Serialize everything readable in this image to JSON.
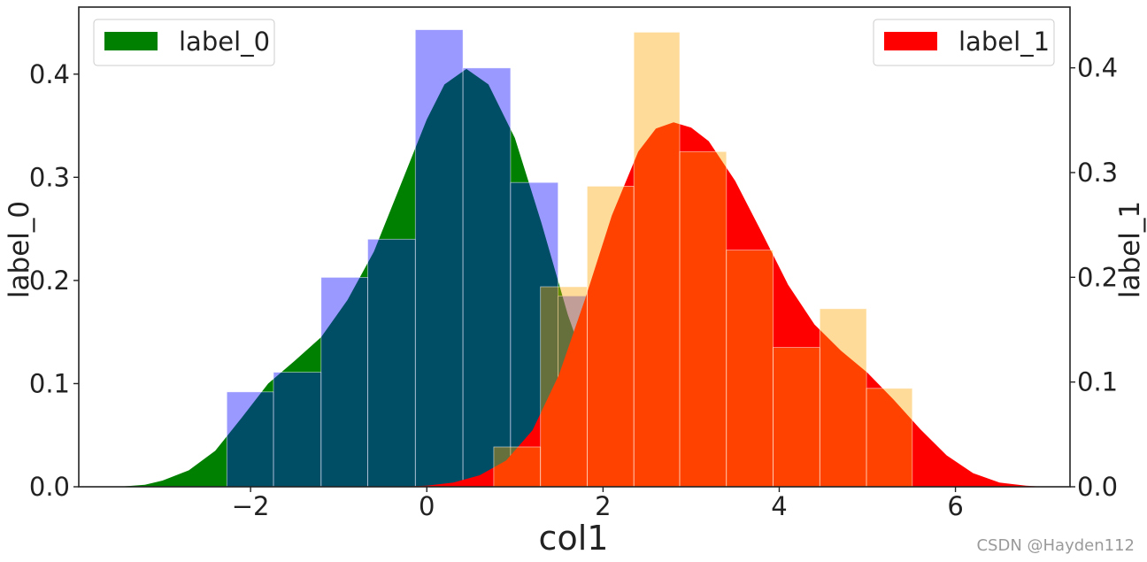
{
  "watermark": "CSDN @Hayden112",
  "chart_data": {
    "type": "histogram",
    "xlabel": "col1",
    "ylabel_left": "label_0",
    "ylabel_right": "label_1",
    "xlim": [
      -3.95,
      7.3
    ],
    "ylim_left": [
      0,
      0.465
    ],
    "ylim_right": [
      0,
      0.458
    ],
    "x_ticks": [
      -2,
      0,
      2,
      4,
      6
    ],
    "x_tick_labels": [
      "−2",
      "0",
      "2",
      "4",
      "6"
    ],
    "y_left_ticks": [
      0.0,
      0.1,
      0.2,
      0.3,
      0.4
    ],
    "y_left_tick_labels": [
      "0.0",
      "0.1",
      "0.2",
      "0.3",
      "0.4"
    ],
    "y_right_ticks": [
      0.0,
      0.1,
      0.2,
      0.3,
      0.4
    ],
    "y_right_tick_labels": [
      "0.0",
      "0.1",
      "0.2",
      "0.3",
      "0.4"
    ],
    "legend_left": {
      "label": "label_0",
      "color": "#008000",
      "position": "top-left"
    },
    "legend_right": {
      "label": "label_1",
      "color": "#ff0000",
      "position": "top-right"
    },
    "series": [
      {
        "name": "label_0",
        "axis": "left",
        "hist_color": "#0000ff",
        "hist_opacity": 0.4,
        "kde_color": "#008000",
        "bins": [
          {
            "x0": -2.27,
            "x1": -1.74,
            "density": 0.092
          },
          {
            "x0": -1.74,
            "x1": -1.2,
            "density": 0.111
          },
          {
            "x0": -1.2,
            "x1": -0.67,
            "density": 0.203
          },
          {
            "x0": -0.67,
            "x1": -0.13,
            "density": 0.24
          },
          {
            "x0": -0.13,
            "x1": 0.41,
            "density": 0.443
          },
          {
            "x0": 0.41,
            "x1": 0.95,
            "density": 0.406
          },
          {
            "x0": 0.95,
            "x1": 1.49,
            "density": 0.295
          },
          {
            "x0": 1.49,
            "x1": 2.03,
            "density": 0.185
          }
        ],
        "kde": [
          {
            "x": -3.5,
            "y": 0.0
          },
          {
            "x": -3.2,
            "y": 0.002
          },
          {
            "x": -3.0,
            "y": 0.006
          },
          {
            "x": -2.7,
            "y": 0.016
          },
          {
            "x": -2.4,
            "y": 0.035
          },
          {
            "x": -2.1,
            "y": 0.067
          },
          {
            "x": -1.8,
            "y": 0.1
          },
          {
            "x": -1.5,
            "y": 0.122
          },
          {
            "x": -1.2,
            "y": 0.145
          },
          {
            "x": -0.9,
            "y": 0.181
          },
          {
            "x": -0.6,
            "y": 0.228
          },
          {
            "x": -0.3,
            "y": 0.292
          },
          {
            "x": 0.0,
            "y": 0.356
          },
          {
            "x": 0.2,
            "y": 0.39
          },
          {
            "x": 0.45,
            "y": 0.405
          },
          {
            "x": 0.7,
            "y": 0.39
          },
          {
            "x": 1.0,
            "y": 0.338
          },
          {
            "x": 1.3,
            "y": 0.256
          },
          {
            "x": 1.6,
            "y": 0.167
          },
          {
            "x": 1.9,
            "y": 0.094
          },
          {
            "x": 2.2,
            "y": 0.046
          },
          {
            "x": 2.5,
            "y": 0.02
          },
          {
            "x": 2.8,
            "y": 0.008
          },
          {
            "x": 3.1,
            "y": 0.003
          },
          {
            "x": 3.5,
            "y": 0.0
          }
        ]
      },
      {
        "name": "label_1",
        "axis": "right",
        "hist_color": "#ffa500",
        "hist_opacity": 0.4,
        "kde_color": "#ff0000",
        "bins": [
          {
            "x0": 0.76,
            "x1": 1.29,
            "density": 0.038
          },
          {
            "x0": 1.29,
            "x1": 1.82,
            "density": 0.191
          },
          {
            "x0": 1.82,
            "x1": 2.35,
            "density": 0.287
          },
          {
            "x0": 2.35,
            "x1": 2.87,
            "density": 0.434
          },
          {
            "x0": 2.87,
            "x1": 3.4,
            "density": 0.32
          },
          {
            "x0": 3.4,
            "x1": 3.93,
            "density": 0.226
          },
          {
            "x0": 3.93,
            "x1": 4.46,
            "density": 0.133
          },
          {
            "x0": 4.46,
            "x1": 4.99,
            "density": 0.17
          },
          {
            "x0": 4.99,
            "x1": 5.51,
            "density": 0.094
          }
        ],
        "kde": [
          {
            "x": -0.3,
            "y": 0.0
          },
          {
            "x": 0.0,
            "y": 0.001
          },
          {
            "x": 0.3,
            "y": 0.004
          },
          {
            "x": 0.6,
            "y": 0.011
          },
          {
            "x": 0.9,
            "y": 0.025
          },
          {
            "x": 1.2,
            "y": 0.054
          },
          {
            "x": 1.5,
            "y": 0.107
          },
          {
            "x": 1.8,
            "y": 0.18
          },
          {
            "x": 2.1,
            "y": 0.259
          },
          {
            "x": 2.4,
            "y": 0.32
          },
          {
            "x": 2.6,
            "y": 0.342
          },
          {
            "x": 2.8,
            "y": 0.348
          },
          {
            "x": 3.0,
            "y": 0.343
          },
          {
            "x": 3.2,
            "y": 0.33
          },
          {
            "x": 3.5,
            "y": 0.292
          },
          {
            "x": 3.8,
            "y": 0.243
          },
          {
            "x": 4.1,
            "y": 0.193
          },
          {
            "x": 4.4,
            "y": 0.155
          },
          {
            "x": 4.7,
            "y": 0.13
          },
          {
            "x": 5.0,
            "y": 0.109
          },
          {
            "x": 5.3,
            "y": 0.083
          },
          {
            "x": 5.6,
            "y": 0.055
          },
          {
            "x": 5.9,
            "y": 0.03
          },
          {
            "x": 6.2,
            "y": 0.013
          },
          {
            "x": 6.5,
            "y": 0.004
          },
          {
            "x": 6.8,
            "y": 0.001
          },
          {
            "x": 7.0,
            "y": 0.0
          }
        ]
      }
    ]
  }
}
